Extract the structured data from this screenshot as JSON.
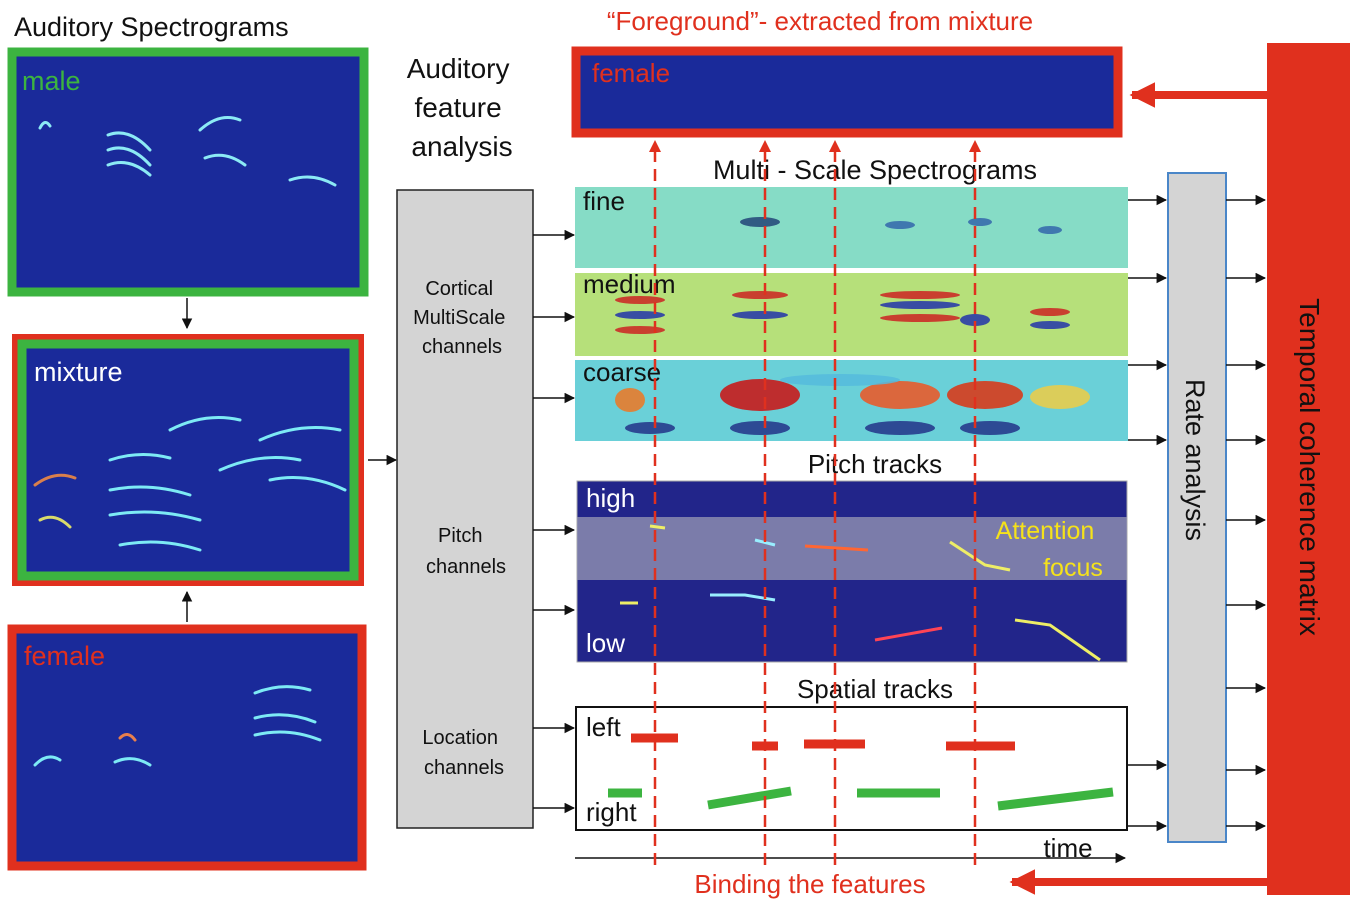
{
  "left": {
    "title": "Auditory Spectrograms",
    "panels": [
      "male",
      "mixture",
      "female"
    ]
  },
  "feature": {
    "title": [
      "Auditory",
      "feature",
      "analysis"
    ],
    "channels": [
      [
        "Cortical",
        "MultiScale",
        "channels"
      ],
      [
        "Pitch",
        "channels"
      ],
      [
        "Location",
        "channels"
      ]
    ]
  },
  "foreground": {
    "title": "“Foreground”- extracted from mixture",
    "label": "female"
  },
  "multiscale": {
    "title": "Multi - Scale Spectrograms",
    "scales": [
      "fine",
      "medium",
      "coarse"
    ]
  },
  "pitch": {
    "title": "Pitch tracks",
    "high": "high",
    "low": "low",
    "attention": [
      "Attention",
      "focus"
    ]
  },
  "spatial": {
    "title": "Spatial tracks",
    "left": "left",
    "right": "right"
  },
  "time": "time",
  "binding": "Binding the features",
  "rate": "Rate analysis",
  "matrix": "Temporal coherence matrix"
}
